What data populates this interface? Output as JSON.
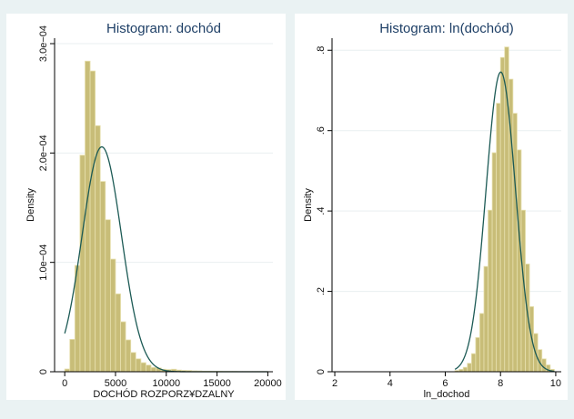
{
  "chart_data": [
    {
      "type": "bar",
      "title": "Histogram: dochód",
      "xlabel": "DOCHÓD ROZPORZ¥DZALNY",
      "ylabel": "Density",
      "xlim": [
        -1000,
        20500
      ],
      "ylim": [
        0,
        0.000305
      ],
      "x_ticks": [
        0,
        5000,
        10000,
        15000,
        20000
      ],
      "x_tick_labels": [
        "0",
        "5000",
        "10000",
        "15000",
        "20000"
      ],
      "y_ticks": [
        0,
        0.0001,
        0.0002,
        0.0003
      ],
      "y_tick_labels": [
        "0",
        "1.0e−04",
        "2.0e−04",
        "3.0e−04"
      ],
      "grid": true,
      "bin_start": 0,
      "bin_width": 500,
      "values": [
        2.5e-06,
        2.96e-05,
        9.72e-05,
        0.000198,
        0.000284,
        0.000275,
        0.000225,
        0.000174,
        0.000139,
        0.000103,
        7.12e-05,
        4.57e-05,
        2.91e-05,
        1.76e-05,
        1.18e-05,
        8.3e-06,
        6.1e-06,
        3.9e-06,
        3.5e-06,
        2.3e-06,
        2e-06,
        2.3e-06,
        1.5e-06,
        1.2e-06,
        1.1e-06,
        8e-07,
        7e-07,
        5e-07,
        5e-07,
        4e-07,
        4e-07,
        3e-07,
        3e-07,
        3e-07,
        2e-07,
        2e-07,
        2e-07,
        2e-07,
        2e-07,
        2e-07
      ],
      "normal_fit": {
        "mean": 3650,
        "sd": 1940
      }
    },
    {
      "type": "bar",
      "title": "Histogram: ln(dochód)",
      "xlabel": "ln_dochod",
      "ylabel": "Density",
      "xlim": [
        1.9,
        10.2
      ],
      "ylim": [
        0,
        0.83
      ],
      "x_ticks": [
        2,
        4,
        6,
        8,
        10
      ],
      "x_tick_labels": [
        "2",
        "4",
        "6",
        "8",
        "10"
      ],
      "y_ticks": [
        0,
        0.2,
        0.4,
        0.6,
        0.8
      ],
      "y_tick_labels": [
        "0",
        ".2",
        ".4",
        ".6",
        ".8"
      ],
      "grid": true,
      "bin_start": 6.35,
      "bin_width": 0.15,
      "values": [
        0.003,
        0.006,
        0.011,
        0.021,
        0.045,
        0.085,
        0.145,
        0.262,
        0.402,
        0.545,
        0.668,
        0.782,
        0.808,
        0.728,
        0.643,
        0.552,
        0.402,
        0.268,
        0.162,
        0.095,
        0.055,
        0.032,
        0.017,
        0.006
      ],
      "normal_fit": {
        "mean": 8.01,
        "sd": 0.535
      }
    }
  ]
}
